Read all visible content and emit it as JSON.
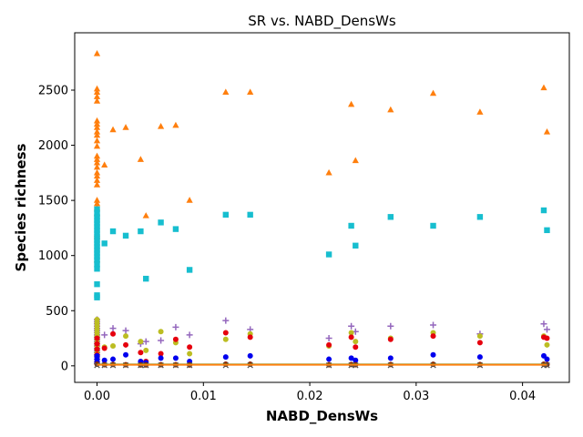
{
  "chart_data": {
    "type": "scatter",
    "title": "SR vs. NABD_DensWs",
    "xlabel": "NABD_DensWs",
    "ylabel": "Species richness",
    "xlim": [
      -0.0021,
      0.0444
    ],
    "ylim": [
      -150,
      3020
    ],
    "xticks": [
      0.0,
      0.01,
      0.02,
      0.03,
      0.04
    ],
    "xtick_labels": [
      "0.00",
      "0.01",
      "0.02",
      "0.03",
      "0.04"
    ],
    "yticks": [
      0,
      500,
      1000,
      1500,
      2000,
      2500
    ],
    "ytick_labels": [
      "0",
      "500",
      "1000",
      "1500",
      "2000",
      "2500"
    ],
    "grid": false,
    "legend": "none",
    "series": [
      {
        "marker": "triangle",
        "color": "#ff7f0e",
        "points": [
          [
            0,
            2830
          ],
          [
            0,
            2510
          ],
          [
            0,
            2480
          ],
          [
            0,
            2440
          ],
          [
            0,
            2400
          ],
          [
            0,
            2220
          ],
          [
            0,
            2190
          ],
          [
            0,
            2160
          ],
          [
            0,
            2120
          ],
          [
            0,
            2090
          ],
          [
            0,
            2040
          ],
          [
            0,
            1990
          ],
          [
            0,
            1900
          ],
          [
            0,
            1870
          ],
          [
            0,
            1840
          ],
          [
            0,
            1800
          ],
          [
            0,
            1750
          ],
          [
            0,
            1720
          ],
          [
            0,
            1680
          ],
          [
            0,
            1640
          ],
          [
            0,
            1500
          ],
          [
            0,
            1470
          ],
          [
            0,
            1430
          ],
          [
            0,
            1380
          ],
          [
            0,
            1190
          ],
          [
            0,
            1170
          ],
          [
            0,
            960
          ],
          [
            0.0007,
            1820
          ],
          [
            0.0015,
            2140
          ],
          [
            0.0027,
            2160
          ],
          [
            0.0041,
            1870
          ],
          [
            0.0046,
            1360
          ],
          [
            0.006,
            2170
          ],
          [
            0.0074,
            2180
          ],
          [
            0.0087,
            1500
          ],
          [
            0.0121,
            2480
          ],
          [
            0.0144,
            2480
          ],
          [
            0.0218,
            1750
          ],
          [
            0.0239,
            2370
          ],
          [
            0.0243,
            1860
          ],
          [
            0.0276,
            2320
          ],
          [
            0.0316,
            2470
          ],
          [
            0.036,
            2300
          ],
          [
            0.042,
            2520
          ],
          [
            0.0423,
            2120
          ]
        ]
      },
      {
        "marker": "square",
        "color": "#17becf",
        "points": [
          [
            0,
            1420
          ],
          [
            0,
            1380
          ],
          [
            0,
            1350
          ],
          [
            0,
            1320
          ],
          [
            0,
            1290
          ],
          [
            0,
            1260
          ],
          [
            0,
            1230
          ],
          [
            0,
            1200
          ],
          [
            0,
            1170
          ],
          [
            0,
            1140
          ],
          [
            0,
            1110
          ],
          [
            0,
            1080
          ],
          [
            0,
            1050
          ],
          [
            0,
            1020
          ],
          [
            0,
            990
          ],
          [
            0,
            960
          ],
          [
            0,
            920
          ],
          [
            0,
            880
          ],
          [
            0,
            740
          ],
          [
            0,
            640
          ],
          [
            0,
            620
          ],
          [
            0.0007,
            1110
          ],
          [
            0.0015,
            1220
          ],
          [
            0.0027,
            1180
          ],
          [
            0.0041,
            1220
          ],
          [
            0.0046,
            790
          ],
          [
            0.006,
            1300
          ],
          [
            0.0074,
            1240
          ],
          [
            0.0087,
            870
          ],
          [
            0.0121,
            1370
          ],
          [
            0.0144,
            1370
          ],
          [
            0.0218,
            1010
          ],
          [
            0.0239,
            1270
          ],
          [
            0.0243,
            1090
          ],
          [
            0.0276,
            1350
          ],
          [
            0.0316,
            1270
          ],
          [
            0.036,
            1350
          ],
          [
            0.042,
            1410
          ],
          [
            0.0423,
            1230
          ]
        ]
      },
      {
        "marker": "plus",
        "color": "#9467bd",
        "points": [
          [
            0,
            420
          ],
          [
            0,
            400
          ],
          [
            0,
            380
          ],
          [
            0,
            360
          ],
          [
            0,
            340
          ],
          [
            0,
            320
          ],
          [
            0,
            300
          ],
          [
            0,
            280
          ],
          [
            0,
            260
          ],
          [
            0,
            240
          ],
          [
            0,
            220
          ],
          [
            0,
            200
          ],
          [
            0,
            180
          ],
          [
            0,
            160
          ],
          [
            0,
            140
          ],
          [
            0,
            120
          ],
          [
            0,
            100
          ],
          [
            0,
            80
          ],
          [
            0,
            60
          ],
          [
            0,
            40
          ],
          [
            0,
            20
          ],
          [
            0.0007,
            280
          ],
          [
            0.0015,
            340
          ],
          [
            0.0027,
            320
          ],
          [
            0.0041,
            200
          ],
          [
            0.0046,
            220
          ],
          [
            0.006,
            230
          ],
          [
            0.0074,
            350
          ],
          [
            0.0087,
            280
          ],
          [
            0.0121,
            410
          ],
          [
            0.0144,
            330
          ],
          [
            0.0218,
            250
          ],
          [
            0.0239,
            360
          ],
          [
            0.0243,
            310
          ],
          [
            0.0276,
            360
          ],
          [
            0.0316,
            370
          ],
          [
            0.036,
            290
          ],
          [
            0.042,
            380
          ],
          [
            0.0423,
            330
          ]
        ]
      },
      {
        "marker": "circle",
        "color": "#bcbd22",
        "points": [
          [
            0,
            420
          ],
          [
            0,
            390
          ],
          [
            0,
            360
          ],
          [
            0,
            330
          ],
          [
            0,
            300
          ],
          [
            0,
            270
          ],
          [
            0,
            240
          ],
          [
            0,
            210
          ],
          [
            0,
            180
          ],
          [
            0,
            150
          ],
          [
            0,
            120
          ],
          [
            0,
            90
          ],
          [
            0.0007,
            170
          ],
          [
            0.0015,
            180
          ],
          [
            0.0027,
            270
          ],
          [
            0.0041,
            220
          ],
          [
            0.0046,
            140
          ],
          [
            0.006,
            310
          ],
          [
            0.0074,
            210
          ],
          [
            0.0087,
            110
          ],
          [
            0.0121,
            240
          ],
          [
            0.0144,
            290
          ],
          [
            0.0218,
            180
          ],
          [
            0.0239,
            300
          ],
          [
            0.0243,
            220
          ],
          [
            0.0276,
            250
          ],
          [
            0.0316,
            300
          ],
          [
            0.036,
            270
          ],
          [
            0.042,
            270
          ],
          [
            0.0423,
            190
          ]
        ]
      },
      {
        "marker": "circle",
        "color": "#e6000e",
        "points": [
          [
            0,
            250
          ],
          [
            0,
            200
          ],
          [
            0,
            150
          ],
          [
            0,
            100
          ],
          [
            0.0007,
            160
          ],
          [
            0.0015,
            290
          ],
          [
            0.0027,
            190
          ],
          [
            0.0041,
            120
          ],
          [
            0.0046,
            40
          ],
          [
            0.006,
            110
          ],
          [
            0.0074,
            240
          ],
          [
            0.0087,
            170
          ],
          [
            0.0121,
            300
          ],
          [
            0.0144,
            260
          ],
          [
            0.0218,
            190
          ],
          [
            0.0239,
            260
          ],
          [
            0.0243,
            170
          ],
          [
            0.0276,
            240
          ],
          [
            0.0316,
            270
          ],
          [
            0.036,
            210
          ],
          [
            0.042,
            260
          ],
          [
            0.0423,
            250
          ]
        ]
      },
      {
        "marker": "circle",
        "color": "#0000ee",
        "points": [
          [
            0,
            90
          ],
          [
            0,
            60
          ],
          [
            0,
            30
          ],
          [
            0.0007,
            50
          ],
          [
            0.0015,
            60
          ],
          [
            0.0027,
            100
          ],
          [
            0.0041,
            40
          ],
          [
            0.0046,
            30
          ],
          [
            0.006,
            70
          ],
          [
            0.0074,
            70
          ],
          [
            0.0087,
            40
          ],
          [
            0.0121,
            80
          ],
          [
            0.0144,
            90
          ],
          [
            0.0218,
            60
          ],
          [
            0.0239,
            70
          ],
          [
            0.0243,
            50
          ],
          [
            0.0276,
            70
          ],
          [
            0.0316,
            100
          ],
          [
            0.036,
            80
          ],
          [
            0.042,
            90
          ],
          [
            0.0423,
            60
          ]
        ]
      },
      {
        "marker": "circle",
        "color": "#8c2d04",
        "points": [
          [
            0,
            15
          ],
          [
            0.0007,
            10
          ],
          [
            0.0015,
            12
          ],
          [
            0.0027,
            10
          ],
          [
            0.0041,
            8
          ],
          [
            0.0046,
            8
          ],
          [
            0.006,
            10
          ],
          [
            0.0074,
            10
          ],
          [
            0.0087,
            8
          ],
          [
            0.0121,
            15
          ],
          [
            0.0144,
            15
          ],
          [
            0.0218,
            10
          ],
          [
            0.0239,
            12
          ],
          [
            0.0243,
            10
          ],
          [
            0.0276,
            12
          ],
          [
            0.0316,
            14
          ],
          [
            0.036,
            12
          ],
          [
            0.042,
            15
          ],
          [
            0.0423,
            12
          ]
        ]
      },
      {
        "marker": "x",
        "color": "#555555",
        "points": [
          [
            0,
            5
          ],
          [
            0.0007,
            5
          ],
          [
            0.0015,
            5
          ],
          [
            0.0027,
            5
          ],
          [
            0.0041,
            5
          ],
          [
            0.0046,
            5
          ],
          [
            0.006,
            5
          ],
          [
            0.0074,
            5
          ],
          [
            0.0087,
            5
          ],
          [
            0.0121,
            5
          ],
          [
            0.0144,
            5
          ],
          [
            0.0218,
            5
          ],
          [
            0.0239,
            5
          ],
          [
            0.0243,
            5
          ],
          [
            0.0276,
            5
          ],
          [
            0.0316,
            5
          ],
          [
            0.036,
            5
          ],
          [
            0.042,
            5
          ],
          [
            0.0423,
            5
          ]
        ]
      }
    ],
    "lines": [
      {
        "color": "#2ca02c",
        "x": [
          0,
          0.0423
        ],
        "y": [
          12,
          12
        ]
      },
      {
        "color": "#ff7f0e",
        "x": [
          0,
          0.0423
        ],
        "y": [
          10,
          10
        ]
      }
    ]
  }
}
